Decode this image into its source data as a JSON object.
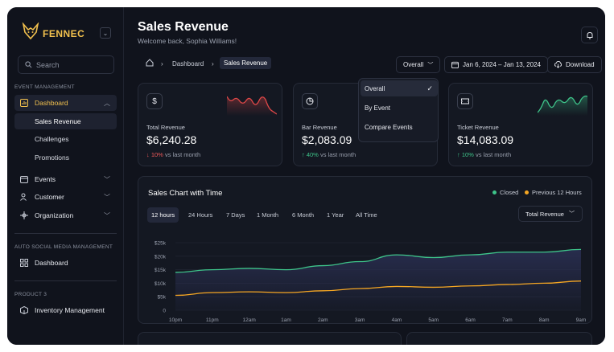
{
  "brand": {
    "name": "FENNEC"
  },
  "sidebar": {
    "search_placeholder": "Search",
    "sections": {
      "event_management": "EVENT MANAGEMENT",
      "social_media": "AUTO SOCIAL MEDIA MANAGEMENT",
      "product": "PRODUCT 3"
    },
    "dashboard": "Dashboard",
    "subitems": [
      "Sales Revenue",
      "Challenges",
      "Promotions"
    ],
    "events": "Events",
    "customer": "Customer",
    "organization": "Organization",
    "social_dashboard": "Dashboard",
    "inventory": "Inventory Management"
  },
  "header": {
    "title": "Sales Revenue",
    "subtitle": "Welcome back, Sophia Williams!"
  },
  "breadcrumb": {
    "first": "Dashboard",
    "current": "Sales Revenue"
  },
  "controls": {
    "overall": "Overall",
    "date_range": "Jan 6, 2024 – Jan 13, 2024",
    "download": "Download"
  },
  "dropdown": {
    "items": [
      "Overall",
      "By Event",
      "Compare Events"
    ],
    "selected": "Overall"
  },
  "cards": [
    {
      "label": "Total Revenue",
      "value": "$6,240.28",
      "change": "10%",
      "direction": "down",
      "suffix": "vs last month",
      "icon": "dollar-icon",
      "spark_color": "#e04848"
    },
    {
      "label": "Bar Revenue",
      "value": "$2,083.09",
      "change": "40%",
      "direction": "up",
      "suffix": "vs last month",
      "icon": "pie-chart-icon"
    },
    {
      "label": "Ticket Revenue",
      "value": "$14,083.09",
      "change": "10%",
      "direction": "up",
      "suffix": "vs last month",
      "icon": "ticket-icon",
      "spark_color": "#3ec48a"
    }
  ],
  "chart_panel": {
    "title": "Sales Chart with Time",
    "legend": [
      {
        "name": "Closed",
        "color": "#3ec48a"
      },
      {
        "name": "Previous 12 Hours",
        "color": "#f5a623"
      }
    ],
    "ranges": [
      "12 hours",
      "24 Hours",
      "7 Days",
      "1 Month",
      "6 Month",
      "1 Year",
      "All Time"
    ],
    "active_range": "12 hours",
    "metric": "Total Revenue"
  },
  "chart_data": {
    "type": "line",
    "title": "Sales Chart with Time",
    "x": [
      "10pm",
      "11pm",
      "12am",
      "1am",
      "2am",
      "3am",
      "4am",
      "5am",
      "6am",
      "7am",
      "8am",
      "9am"
    ],
    "yticks": [
      "$25k",
      "$20k",
      "$15k",
      "$10k",
      "$5k",
      "0"
    ],
    "ylim": [
      0,
      25000
    ],
    "series": [
      {
        "name": "Closed",
        "color": "#3ec48a",
        "values": [
          14000,
          15000,
          15500,
          15000,
          16500,
          18000,
          20500,
          19500,
          20500,
          21500,
          21500,
          22500
        ]
      },
      {
        "name": "Previous 12 Hours",
        "color": "#f5a623",
        "values": [
          5500,
          6500,
          6800,
          6500,
          7200,
          8000,
          8800,
          8500,
          9000,
          9500,
          10000,
          10800
        ]
      }
    ]
  }
}
